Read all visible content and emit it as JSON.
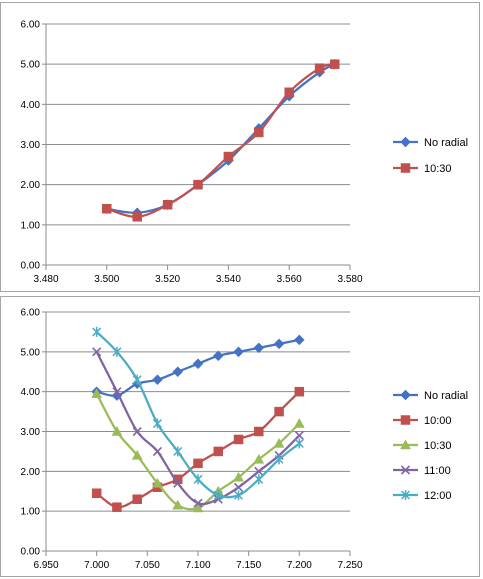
{
  "chart_data": [
    {
      "type": "line",
      "x_ticks": [
        "3.480",
        "3.500",
        "3.520",
        "3.540",
        "3.560",
        "3.580"
      ],
      "y_ticks": [
        "0.00",
        "1.00",
        "2.00",
        "3.00",
        "4.00",
        "5.00",
        "6.00"
      ],
      "xlim": [
        3.48,
        3.58
      ],
      "ylim": [
        0,
        6
      ],
      "grid": "horizontal",
      "legend_position": "right",
      "series": [
        {
          "name": "No radial",
          "color": "#4472c4",
          "marker": "diamond",
          "x": [
            3.5,
            3.51,
            3.52,
            3.53,
            3.54,
            3.55,
            3.56,
            3.57,
            3.575
          ],
          "y": [
            1.4,
            1.3,
            1.5,
            2.0,
            2.6,
            3.4,
            4.2,
            4.8,
            5.0
          ]
        },
        {
          "name": "10:30",
          "color": "#c0504d",
          "marker": "square",
          "x": [
            3.5,
            3.51,
            3.52,
            3.53,
            3.54,
            3.55,
            3.56,
            3.57,
            3.575
          ],
          "y": [
            1.4,
            1.2,
            1.5,
            2.0,
            2.7,
            3.3,
            4.3,
            4.9,
            5.0
          ]
        }
      ]
    },
    {
      "type": "line",
      "x_ticks": [
        "6.950",
        "7.000",
        "7.050",
        "7.100",
        "7.150",
        "7.200",
        "7.250"
      ],
      "y_ticks": [
        "0.00",
        "1.00",
        "2.00",
        "3.00",
        "4.00",
        "5.00",
        "6.00"
      ],
      "xlim": [
        6.95,
        7.25
      ],
      "ylim": [
        0,
        6
      ],
      "grid": "horizontal",
      "legend_position": "right",
      "series": [
        {
          "name": "No radial",
          "color": "#4472c4",
          "marker": "diamond",
          "x": [
            7.0,
            7.02,
            7.04,
            7.06,
            7.08,
            7.1,
            7.12,
            7.14,
            7.16,
            7.18,
            7.2
          ],
          "y": [
            4.0,
            3.9,
            4.2,
            4.3,
            4.5,
            4.7,
            4.9,
            5.0,
            5.1,
            5.2,
            5.3
          ]
        },
        {
          "name": "10:00",
          "color": "#c0504d",
          "marker": "square",
          "x": [
            7.0,
            7.02,
            7.04,
            7.06,
            7.08,
            7.1,
            7.12,
            7.14,
            7.16,
            7.18,
            7.2
          ],
          "y": [
            1.45,
            1.1,
            1.3,
            1.6,
            1.8,
            2.2,
            2.5,
            2.8,
            3.0,
            3.5,
            4.0
          ]
        },
        {
          "name": "10:30",
          "color": "#9bbb59",
          "marker": "triangle",
          "x": [
            7.0,
            7.02,
            7.04,
            7.06,
            7.08,
            7.1,
            7.12,
            7.14,
            7.16,
            7.18,
            7.2
          ],
          "y": [
            3.95,
            3.0,
            2.4,
            1.7,
            1.15,
            1.08,
            1.5,
            1.85,
            2.3,
            2.7,
            3.2
          ]
        },
        {
          "name": "11:00",
          "color": "#8064a2",
          "marker": "x",
          "x": [
            7.0,
            7.02,
            7.04,
            7.06,
            7.08,
            7.1,
            7.12,
            7.14,
            7.16,
            7.18,
            7.2
          ],
          "y": [
            5.0,
            4.0,
            3.0,
            2.5,
            1.7,
            1.2,
            1.3,
            1.6,
            2.0,
            2.4,
            2.9
          ]
        },
        {
          "name": "12:00",
          "color": "#4bacc6",
          "marker": "star",
          "x": [
            7.0,
            7.02,
            7.04,
            7.06,
            7.08,
            7.1,
            7.12,
            7.14,
            7.16,
            7.18,
            7.2
          ],
          "y": [
            5.5,
            5.0,
            4.3,
            3.2,
            2.5,
            1.8,
            1.4,
            1.4,
            1.8,
            2.3,
            2.7
          ]
        }
      ]
    }
  ]
}
